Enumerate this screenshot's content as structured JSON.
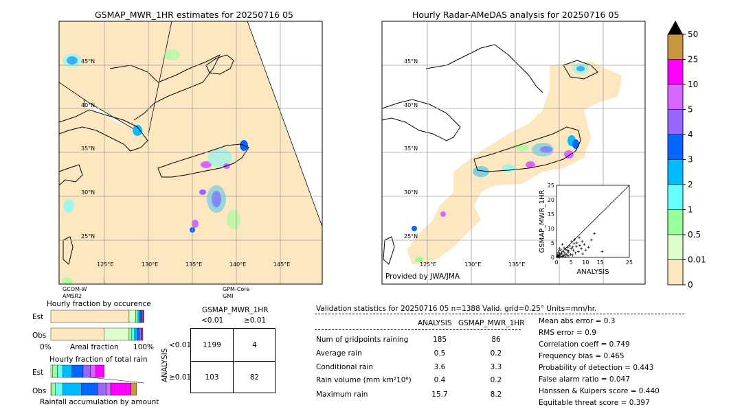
{
  "left_map": {
    "title": "GSMAP_MWR_1HR estimates for 20250716 05",
    "lat_labels": [
      "45°N",
      "40°N",
      "35°N",
      "30°N",
      "25°N"
    ],
    "lon_labels": [
      "125°E",
      "130°E",
      "135°E",
      "140°E",
      "145°E"
    ],
    "swath_labels": [
      {
        "line1": "GCOM-W",
        "line2": "AMSR2"
      },
      {
        "line1": "GPM-Core",
        "line2": "GMI"
      }
    ]
  },
  "right_map": {
    "title": "Hourly Radar-AMeDAS analysis for 20250716 05",
    "lat_labels": [
      "45°N",
      "40°N",
      "35°N",
      "30°N",
      "25°N"
    ],
    "lon_labels": [
      "125°E",
      "130°E",
      "135°E"
    ],
    "credit": "Provided by JWA/JMA"
  },
  "colorbar": {
    "labels": [
      "50",
      "25",
      "10",
      "5",
      "4",
      "3",
      "2",
      "1",
      "0.5",
      "0.01",
      "0"
    ],
    "colors": [
      "#c8963c",
      "#ff00ff",
      "#d966ff",
      "#9966ff",
      "#0066ff",
      "#00bbff",
      "#66ffff",
      "#99ff99",
      "#ddffcc",
      "#fde7c0"
    ],
    "extend_color": "#000000"
  },
  "chart_data": [
    {
      "type": "scatter",
      "title": "",
      "xlabel": "ANALYSIS",
      "ylabel": "GSMAP_MWR_1HR",
      "xlim": [
        0,
        25
      ],
      "ylim": [
        0,
        25
      ],
      "xticks": [
        "0",
        "5",
        "10",
        "15",
        "25"
      ],
      "yticks": [
        "0",
        "5",
        "10",
        "15",
        "20",
        "25"
      ],
      "marker": "+",
      "diagonal": true,
      "points": [
        [
          0.2,
          0.1
        ],
        [
          0.4,
          0.3
        ],
        [
          0.6,
          0.2
        ],
        [
          0.8,
          0.5
        ],
        [
          1.0,
          0.1
        ],
        [
          1.2,
          0.8
        ],
        [
          1.5,
          0.4
        ],
        [
          1.8,
          1.2
        ],
        [
          2.0,
          0.3
        ],
        [
          2.2,
          2.0
        ],
        [
          2.5,
          0.6
        ],
        [
          2.8,
          1.5
        ],
        [
          3.0,
          0.2
        ],
        [
          3.2,
          2.8
        ],
        [
          3.5,
          1.0
        ],
        [
          3.8,
          3.5
        ],
        [
          4.0,
          0.5
        ],
        [
          4.2,
          2.2
        ],
        [
          4.5,
          4.0
        ],
        [
          4.8,
          1.0
        ],
        [
          5.0,
          3.0
        ],
        [
          5.2,
          5.5
        ],
        [
          5.5,
          0.8
        ],
        [
          5.8,
          2.5
        ],
        [
          6.0,
          4.8
        ],
        [
          6.2,
          6.2
        ],
        [
          6.5,
          1.5
        ],
        [
          6.8,
          3.8
        ],
        [
          7.0,
          5.0
        ],
        [
          7.5,
          2.0
        ],
        [
          7.8,
          6.8
        ],
        [
          8.0,
          4.2
        ],
        [
          8.5,
          3.0
        ],
        [
          8.8,
          5.5
        ],
        [
          9.0,
          1.2
        ],
        [
          9.5,
          4.5
        ],
        [
          10.0,
          2.5
        ],
        [
          11.0,
          3.5
        ],
        [
          12.0,
          6.0
        ],
        [
          13.0,
          8.2
        ],
        [
          15.7,
          2.0
        ],
        [
          1.0,
          3.2
        ],
        [
          0.5,
          1.8
        ],
        [
          2.0,
          4.5
        ],
        [
          1.5,
          2.6
        ],
        [
          0.3,
          0.9
        ],
        [
          3.0,
          0.9
        ],
        [
          4.0,
          1.8
        ],
        [
          0.7,
          0.7
        ],
        [
          1.1,
          1.4
        ],
        [
          2.6,
          3.3
        ],
        [
          3.6,
          2.4
        ],
        [
          0.9,
          2.3
        ],
        [
          5.5,
          3.6
        ]
      ]
    },
    {
      "type": "bar",
      "title": "Hourly fraction by occurence",
      "categories": [
        "Est",
        "Obs"
      ],
      "xlabel": "Areal fraction",
      "xticks": [
        "0%",
        "100%"
      ],
      "series": [
        {
          "values": [
            0.85,
            0.58
          ]
        },
        {
          "values": [
            0.07,
            0.27
          ]
        },
        {
          "values": [
            0.02,
            0.03
          ]
        },
        {
          "values": [
            0.015,
            0.03
          ]
        },
        {
          "values": [
            0.015,
            0.03
          ]
        },
        {
          "values": [
            0.01,
            0.02
          ]
        },
        {
          "values": [
            0.01,
            0.02
          ]
        },
        {
          "values": [
            0.01,
            0.01
          ]
        },
        {
          "values": [
            0.005,
            0.01
          ]
        },
        {
          "values": [
            0.005,
            0.0
          ]
        }
      ]
    },
    {
      "type": "bar",
      "title": "Hourly fraction of total rain",
      "categories": [
        "Est",
        "Obs"
      ],
      "xlabel": "Rainfall accumulation by amount",
      "series": [
        {
          "values": [
            0.02,
            0.01
          ]
        },
        {
          "values": [
            0.05,
            0.04
          ]
        },
        {
          "values": [
            0.06,
            0.08
          ]
        },
        {
          "values": [
            0.1,
            0.2
          ]
        },
        {
          "values": [
            0.12,
            0.18
          ]
        },
        {
          "values": [
            0.08,
            0.09
          ]
        },
        {
          "values": [
            0.06,
            0.05
          ]
        },
        {
          "values": [
            0.09,
            0.22
          ]
        },
        {
          "values": [
            0.0,
            0.06
          ]
        }
      ]
    }
  ],
  "contingency": {
    "title": "GSMAP_MWR_1HR",
    "col_labels": [
      "<0.01",
      "≥0.01"
    ],
    "row_axis": "ANALYSIS",
    "row_labels": [
      "<0.01",
      "≥0.01"
    ],
    "cells": [
      "1199",
      "4",
      "103",
      "82"
    ]
  },
  "validation": {
    "header": "Validation statistics for 20250716 05  n=1388 Valid. grid=0.25° Units=mm/hr.",
    "col_analysis": "ANALYSIS",
    "col_gsmap": "GSMAP_MWR_1HR",
    "rows": [
      {
        "label": "Num of gridpoints raining",
        "analysis": "185",
        "gsmap": "86"
      },
      {
        "label": "Average rain",
        "analysis": "0.5",
        "gsmap": "0.2"
      },
      {
        "label": "Conditional rain",
        "analysis": "3.6",
        "gsmap": "3.3"
      },
      {
        "label": "Rain volume (mm km²10⁶)",
        "analysis": "0.4",
        "gsmap": "0.2"
      },
      {
        "label": "Maximum rain",
        "analysis": "15.7",
        "gsmap": "8.2"
      }
    ],
    "scores": [
      "Mean abs error =    0.3",
      "RMS error =    0.9",
      "Correlation coeff =  0.749",
      "Frequency bias =  0.465",
      "Probability of detection =  0.443",
      "False alarm ratio =  0.047",
      "Hanssen & Kuipers score =  0.440",
      "Equitable threat score =  0.397"
    ]
  }
}
